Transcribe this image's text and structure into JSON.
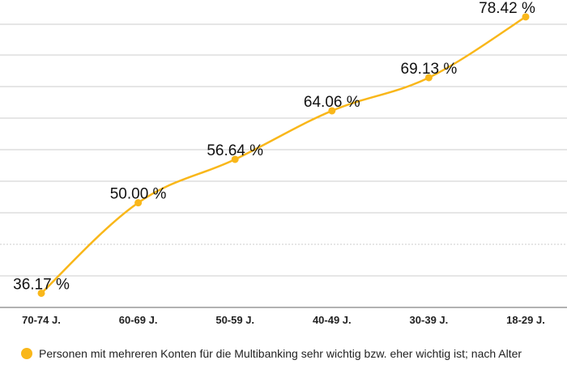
{
  "chart_data": {
    "type": "line",
    "categories": [
      "70-74 J.",
      "60-69 J.",
      "50-59 J.",
      "40-49 J.",
      "30-39 J.",
      "18-29 J."
    ],
    "series": [
      {
        "name": "Personen mit mehreren Konten für die Multibanking sehr wichtig bzw. eher wichtig ist; nach Alter",
        "values": [
          36.17,
          50.0,
          56.64,
          64.06,
          69.13,
          78.42
        ],
        "labels": [
          "36.17 %",
          "50.00 %",
          "56.64 %",
          "64.06 %",
          "69.13 %",
          "78.42 %"
        ]
      }
    ],
    "ylim": [
      34,
      81
    ],
    "grid": true,
    "legend_position": "bottom-left",
    "colors": {
      "series": "#f9b71a",
      "grid": "#cccccc",
      "baseline": "#999999"
    }
  }
}
